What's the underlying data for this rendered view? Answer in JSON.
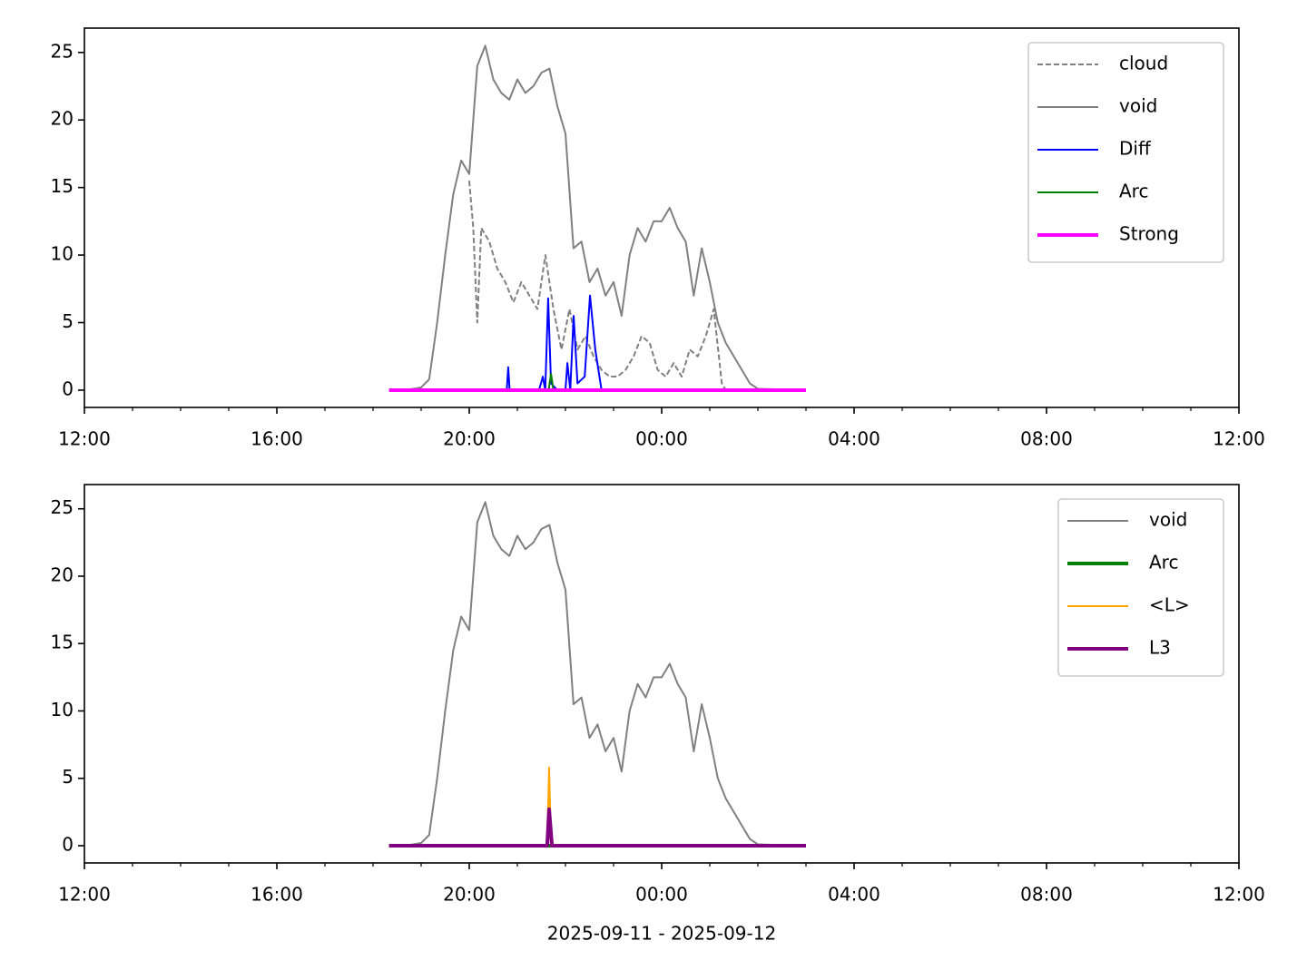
{
  "chart_data": [
    {
      "type": "line",
      "xlim": [
        0,
        24
      ],
      "ylim": [
        -1.28,
        26.8
      ],
      "xticks": [
        {
          "value": 0,
          "label": "12:00"
        },
        {
          "value": 4,
          "label": "16:00"
        },
        {
          "value": 8,
          "label": "20:00"
        },
        {
          "value": 12,
          "label": "00:00"
        },
        {
          "value": 16,
          "label": "04:00"
        },
        {
          "value": 20,
          "label": "08:00"
        },
        {
          "value": 24,
          "label": "12:00"
        }
      ],
      "xminorticks": [
        1,
        2,
        3,
        5,
        6,
        7,
        9,
        10,
        11,
        13,
        14,
        15,
        17,
        18,
        19,
        21,
        22,
        23
      ],
      "yticks": [
        0,
        5,
        10,
        15,
        20,
        25
      ],
      "legend": "upper right",
      "series": [
        {
          "name": "cloud",
          "color": "#808080",
          "style": "dashed",
          "width": 2,
          "x": [
            8.0,
            8.083,
            8.167,
            8.25,
            8.417,
            8.583,
            8.75,
            8.917,
            9.083,
            9.25,
            9.417,
            9.583,
            9.75,
            9.917,
            10.083,
            10.25,
            10.417,
            10.583,
            10.75,
            10.917,
            11.083,
            11.25,
            11.417,
            11.583,
            11.75,
            11.917,
            12.083,
            12.25,
            12.417,
            12.583,
            12.75,
            12.917,
            13.083,
            13.25,
            13.333
          ],
          "values": [
            15.5,
            12,
            5,
            12,
            11,
            9,
            8,
            6.5,
            8,
            7,
            6,
            10,
            6,
            3,
            6,
            3,
            4,
            2.5,
            1.5,
            1,
            1,
            1.5,
            2.5,
            4,
            3.5,
            1.5,
            1,
            2,
            1,
            3,
            2.5,
            4,
            6,
            0.5,
            0
          ]
        },
        {
          "name": "void",
          "color": "#808080",
          "style": "solid",
          "width": 2,
          "x": [
            6.333,
            6.667,
            7.0,
            7.167,
            7.333,
            7.5,
            7.667,
            7.833,
            8.0,
            8.167,
            8.333,
            8.5,
            8.667,
            8.833,
            9.0,
            9.167,
            9.333,
            9.5,
            9.667,
            9.833,
            10.0,
            10.167,
            10.333,
            10.5,
            10.667,
            10.833,
            11.0,
            11.167,
            11.333,
            11.5,
            11.667,
            11.833,
            12.0,
            12.167,
            12.333,
            12.5,
            12.667,
            12.833,
            13.0,
            13.167,
            13.333,
            13.5,
            13.667,
            13.833,
            14.0,
            15.0
          ],
          "values": [
            0,
            0,
            0.2,
            0.8,
            5,
            10,
            14.5,
            17,
            16,
            24,
            25.5,
            23,
            22,
            21.5,
            23,
            22,
            22.5,
            23.5,
            23.8,
            21,
            19,
            10.5,
            11,
            8,
            9,
            7,
            8,
            5.5,
            10,
            12,
            11,
            12.5,
            12.5,
            13.5,
            12,
            11,
            7,
            10.5,
            8,
            5,
            3.5,
            2.5,
            1.5,
            0.5,
            0.1,
            0
          ]
        },
        {
          "name": "Diff",
          "color": "#0000ff",
          "style": "solid",
          "width": 2,
          "x": [
            8.78,
            8.81,
            8.84,
            9.45,
            9.53,
            9.58,
            9.64,
            9.7,
            9.83,
            10.0,
            10.04,
            10.1,
            10.17,
            10.25,
            10.4,
            10.51,
            10.62,
            10.75
          ],
          "values": [
            0,
            1.7,
            0,
            0,
            1,
            0,
            6.8,
            0.5,
            0,
            0,
            2,
            0,
            5.5,
            0.5,
            1,
            7,
            3,
            0
          ]
        },
        {
          "name": "Arc",
          "color": "#008000",
          "style": "solid",
          "width": 2,
          "x": [
            6.333,
            9.65,
            9.7,
            9.75,
            15.0
          ],
          "values": [
            0,
            0,
            1.2,
            0,
            0
          ]
        },
        {
          "name": "Strong",
          "color": "#ff00ff",
          "style": "solid",
          "width": 4,
          "x": [
            6.333,
            15.0
          ],
          "values": [
            0,
            0
          ]
        }
      ]
    },
    {
      "type": "line",
      "xlabel": "2025-09-11 - 2025-09-12",
      "xlim": [
        0,
        24
      ],
      "ylim": [
        -1.28,
        26.8
      ],
      "xticks": [
        {
          "value": 0,
          "label": "12:00"
        },
        {
          "value": 4,
          "label": "16:00"
        },
        {
          "value": 8,
          "label": "20:00"
        },
        {
          "value": 12,
          "label": "00:00"
        },
        {
          "value": 16,
          "label": "04:00"
        },
        {
          "value": 20,
          "label": "08:00"
        },
        {
          "value": 24,
          "label": "12:00"
        }
      ],
      "xminorticks": [
        1,
        2,
        3,
        5,
        6,
        7,
        9,
        10,
        11,
        13,
        14,
        15,
        17,
        18,
        19,
        21,
        22,
        23
      ],
      "yticks": [
        0,
        5,
        10,
        15,
        20,
        25
      ],
      "legend": "upper right",
      "series": [
        {
          "name": "void",
          "color": "#808080",
          "style": "solid",
          "width": 2,
          "x": [
            6.333,
            6.667,
            7.0,
            7.167,
            7.333,
            7.5,
            7.667,
            7.833,
            8.0,
            8.167,
            8.333,
            8.5,
            8.667,
            8.833,
            9.0,
            9.167,
            9.333,
            9.5,
            9.667,
            9.833,
            10.0,
            10.167,
            10.333,
            10.5,
            10.667,
            10.833,
            11.0,
            11.167,
            11.333,
            11.5,
            11.667,
            11.833,
            12.0,
            12.167,
            12.333,
            12.5,
            12.667,
            12.833,
            13.0,
            13.167,
            13.333,
            13.5,
            13.667,
            13.833,
            14.0,
            15.0
          ],
          "values": [
            0,
            0,
            0.2,
            0.8,
            5,
            10,
            14.5,
            17,
            16,
            24,
            25.5,
            23,
            22,
            21.5,
            23,
            22,
            22.5,
            23.5,
            23.8,
            21,
            19,
            10.5,
            11,
            8,
            9,
            7,
            8,
            5.5,
            10,
            12,
            11,
            12.5,
            12.5,
            13.5,
            12,
            11,
            7,
            10.5,
            8,
            5,
            3.5,
            2.5,
            1.5,
            0.5,
            0.1,
            0
          ]
        },
        {
          "name": "Arc",
          "color": "#008000",
          "style": "solid",
          "width": 4,
          "x": [
            6.333,
            15.0
          ],
          "values": [
            0,
            0
          ]
        },
        {
          "name": "<L>",
          "color": "#ffa500",
          "style": "solid",
          "width": 2,
          "x": [
            6.333,
            9.62,
            9.66,
            9.7,
            15.0
          ],
          "values": [
            0,
            0,
            5.8,
            0,
            0
          ]
        },
        {
          "name": "L3",
          "color": "#800080",
          "style": "solid",
          "width": 4,
          "x": [
            6.333,
            9.62,
            9.66,
            9.72,
            15.0
          ],
          "values": [
            0,
            0,
            2.7,
            0,
            0
          ]
        }
      ]
    }
  ]
}
